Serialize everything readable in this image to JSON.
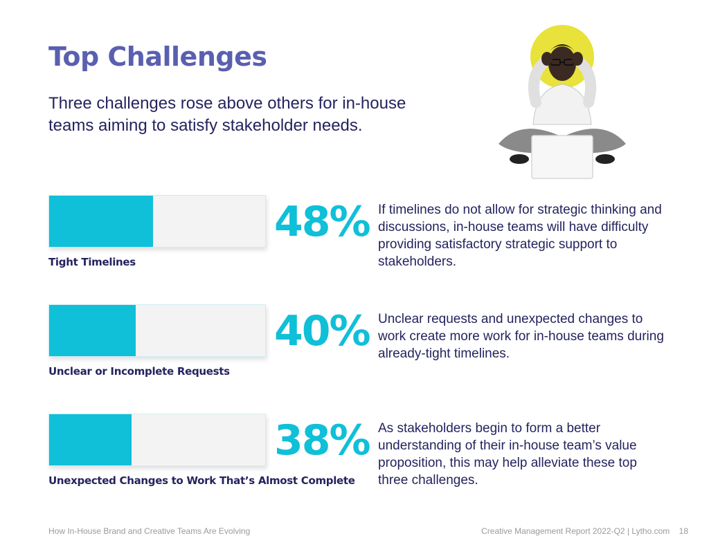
{
  "header": {
    "title": "Top Challenges",
    "subtitle": "Three challenges rose above others for in-house teams aiming to satisfy stakeholder needs."
  },
  "colors": {
    "accent": "#10bfd8",
    "title": "#5a5fb0",
    "text": "#24235e",
    "photo_circle": "#e8e23a"
  },
  "challenges": [
    {
      "label": "Tight Timelines",
      "percent_text": "48%",
      "value": 48,
      "description": "If timelines do not allow for strategic thinking and discussions, in-house teams will have difficulty providing satisfactory strategic support to stakeholders."
    },
    {
      "label": "Unclear or Incomplete Requests",
      "percent_text": "40%",
      "value": 40,
      "description": "Unclear requests and unexpected changes to work create more work for in-house teams during already-tight timelines."
    },
    {
      "label": "Unexpected Changes to Work That’s Almost Complete",
      "percent_text": "38%",
      "value": 38,
      "description": "As stakeholders begin to form a better understanding of their in-house team’s value proposition, this may help alleviate these top three challenges."
    }
  ],
  "footer": {
    "left": "How In-House Brand and Creative Teams Are Evolving",
    "right": "Creative Management Report 2022-Q2 | Lytho.com",
    "page": "18"
  }
}
